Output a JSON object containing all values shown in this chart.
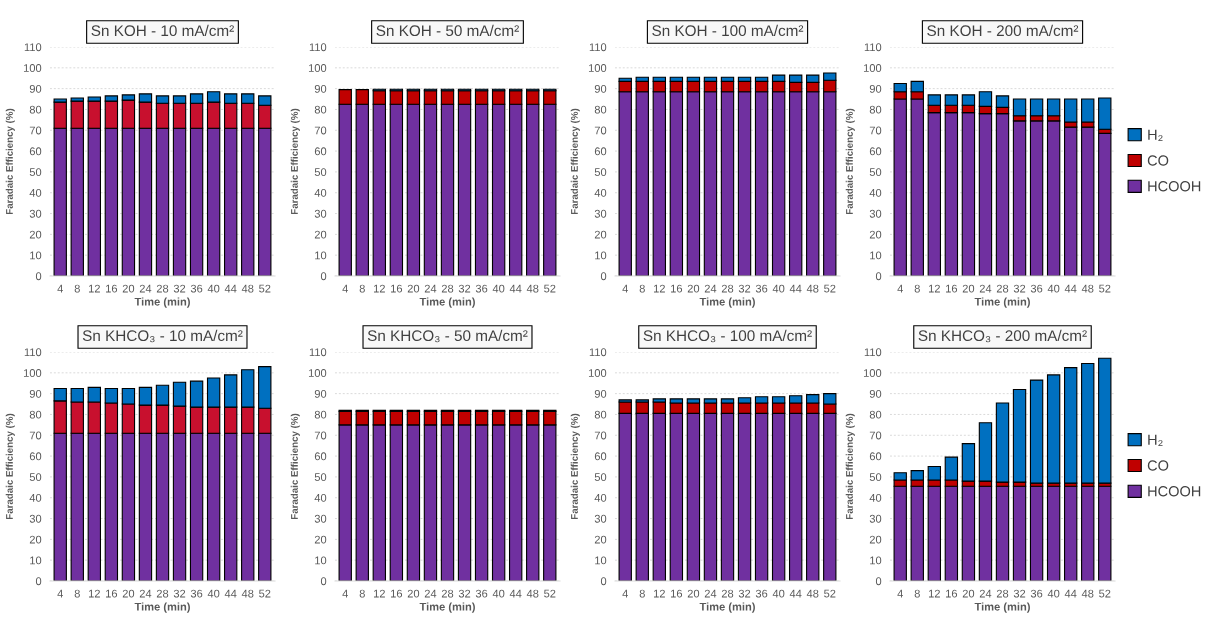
{
  "chart_data": [
    {
      "type": "bar",
      "stacked": true,
      "title": "Sn KOH - 10 mA/cm²",
      "xlabel": "Time (min)",
      "ylabel": "Faradaic Efficiency (%)",
      "categories": [
        "4",
        "8",
        "12",
        "16",
        "20",
        "24",
        "28",
        "32",
        "36",
        "40",
        "44",
        "48",
        "52"
      ],
      "ylim": [
        0,
        110
      ],
      "yticks": [
        0,
        10,
        20,
        30,
        40,
        50,
        60,
        70,
        80,
        90,
        100,
        110
      ],
      "grid": "y",
      "legend": false,
      "series": [
        {
          "color": "#7030a0",
          "values": [
            71,
            71,
            71,
            71,
            71,
            71,
            71,
            71,
            71,
            71,
            71,
            71,
            71
          ]
        },
        {
          "color": "#c8102e",
          "values": [
            12.5,
            13,
            13,
            13,
            13.5,
            12.5,
            12,
            12,
            12,
            12.5,
            12,
            12,
            11
          ]
        },
        {
          "color": "#0070c0",
          "values": [
            1.5,
            1.5,
            2,
            2.5,
            2.5,
            4,
            3.5,
            3.5,
            4.5,
            5,
            4.5,
            4.5,
            4.5
          ]
        }
      ]
    },
    {
      "type": "bar",
      "stacked": true,
      "title": "Sn KOH - 50 mA/cm²",
      "xlabel": "Time (min)",
      "ylabel": "Faradaic Efficiency (%)",
      "categories": [
        "4",
        "8",
        "12",
        "16",
        "20",
        "24",
        "28",
        "32",
        "36",
        "40",
        "44",
        "48",
        "52"
      ],
      "ylim": [
        0,
        110
      ],
      "yticks": [
        0,
        10,
        20,
        30,
        40,
        50,
        60,
        70,
        80,
        90,
        100,
        110
      ],
      "grid": "y",
      "legend": false,
      "series": [
        {
          "color": "#7030a0",
          "values": [
            82.5,
            82.5,
            82.5,
            82.5,
            82.5,
            82.5,
            82.5,
            82.5,
            82.5,
            82.5,
            82.5,
            82.5,
            82.5
          ]
        },
        {
          "color": "#c00000",
          "values": [
            7,
            7,
            6.5,
            6.5,
            6.5,
            6.5,
            6.5,
            6.5,
            6.5,
            6.5,
            6.5,
            6.5,
            6.5
          ]
        },
        {
          "color": "#0070c0",
          "values": [
            null,
            null,
            0.7,
            0.7,
            0.7,
            0.7,
            0.7,
            0.7,
            0.7,
            0.7,
            0.7,
            0.7,
            0.7
          ]
        }
      ]
    },
    {
      "type": "bar",
      "stacked": true,
      "title": "Sn KOH - 100 mA/cm²",
      "xlabel": "Time (min)",
      "ylabel": "Faradaic Efficiency (%)",
      "categories": [
        "4",
        "8",
        "12",
        "16",
        "20",
        "24",
        "28",
        "32",
        "36",
        "40",
        "44",
        "48",
        "52"
      ],
      "ylim": [
        0,
        110
      ],
      "yticks": [
        0,
        10,
        20,
        30,
        40,
        50,
        60,
        70,
        80,
        90,
        100,
        110
      ],
      "grid": "y",
      "legend": false,
      "series": [
        {
          "color": "#7030a0",
          "values": [
            88.5,
            88.5,
            88.5,
            88.5,
            88.5,
            88.5,
            88.5,
            88.5,
            88.5,
            88.5,
            88.5,
            88.5,
            88.5
          ]
        },
        {
          "color": "#c00000",
          "values": [
            5,
            5,
            5,
            5,
            5,
            5,
            5,
            5,
            5,
            5,
            4.5,
            4.5,
            5.5
          ]
        },
        {
          "color": "#0070c0",
          "values": [
            1.5,
            2,
            2,
            2,
            2,
            2,
            2,
            2,
            2,
            3,
            3.5,
            3.5,
            3.5
          ]
        }
      ]
    },
    {
      "type": "bar",
      "stacked": true,
      "title": "Sn KOH - 200 mA/cm²",
      "xlabel": "Time (min)",
      "ylabel": "Faradaic Efficiency (%)",
      "categories": [
        "4",
        "8",
        "12",
        "16",
        "20",
        "24",
        "28",
        "32",
        "36",
        "40",
        "44",
        "48",
        "52"
      ],
      "ylim": [
        0,
        110
      ],
      "yticks": [
        0,
        10,
        20,
        30,
        40,
        50,
        60,
        70,
        80,
        90,
        100,
        110
      ],
      "grid": "y",
      "legend": "right",
      "series": [
        {
          "name": "HCOOH",
          "color": "#7030a0",
          "values": [
            85,
            85,
            78.5,
            78.5,
            78.5,
            78,
            78,
            74.5,
            74.5,
            74.5,
            71.5,
            71.5,
            68.5
          ]
        },
        {
          "name": "CO",
          "color": "#c00000",
          "values": [
            3.5,
            3.5,
            3.5,
            3.5,
            3.5,
            3.5,
            3,
            2.5,
            2.5,
            2.5,
            2.5,
            2.5,
            2
          ]
        },
        {
          "name": "H₂",
          "color": "#0070c0",
          "values": [
            4,
            5,
            5,
            5,
            5,
            7,
            5.5,
            8,
            8,
            8,
            11,
            11,
            15
          ]
        }
      ]
    },
    {
      "type": "bar",
      "stacked": true,
      "title": "Sn KHCO₃ - 10 mA/cm²",
      "xlabel": "Time (min)",
      "ylabel": "Faradaic Efficiency (%)",
      "categories": [
        "4",
        "8",
        "12",
        "16",
        "20",
        "24",
        "28",
        "32",
        "36",
        "40",
        "44",
        "48",
        "52"
      ],
      "ylim": [
        0,
        110
      ],
      "yticks": [
        0,
        10,
        20,
        30,
        40,
        50,
        60,
        70,
        80,
        90,
        100,
        110
      ],
      "grid": "y",
      "legend": false,
      "series": [
        {
          "color": "#7030a0",
          "values": [
            71,
            71,
            71,
            71,
            71,
            71,
            71,
            71,
            71,
            71,
            71,
            71,
            71
          ]
        },
        {
          "color": "#c8102e",
          "values": [
            15.5,
            15,
            15,
            14.5,
            14,
            13.5,
            13.5,
            13,
            12.5,
            12.5,
            12.5,
            12.5,
            12
          ]
        },
        {
          "color": "#0070c0",
          "values": [
            6,
            6.5,
            7,
            7,
            7.5,
            8.5,
            9.5,
            11.5,
            12.5,
            14,
            15.5,
            18,
            20
          ]
        }
      ]
    },
    {
      "type": "bar",
      "stacked": true,
      "title": "Sn KHCO₃ - 50 mA/cm²",
      "xlabel": "Time (min)",
      "ylabel": "Faradaic Efficiency (%)",
      "categories": [
        "4",
        "8",
        "12",
        "16",
        "20",
        "24",
        "28",
        "32",
        "36",
        "40",
        "44",
        "48",
        "52"
      ],
      "ylim": [
        0,
        110
      ],
      "yticks": [
        0,
        10,
        20,
        30,
        40,
        50,
        60,
        70,
        80,
        90,
        100,
        110
      ],
      "grid": "y",
      "legend": false,
      "series": [
        {
          "color": "#7030a0",
          "values": [
            75,
            75,
            75,
            75,
            75,
            75,
            75,
            75,
            75,
            75,
            75,
            75,
            75
          ]
        },
        {
          "color": "#c00000",
          "values": [
            6.5,
            6.5,
            6.5,
            6.5,
            6.5,
            6.5,
            6.5,
            6.5,
            6.5,
            6.5,
            6.5,
            6.5,
            6.5
          ]
        },
        {
          "color": "#0070c0",
          "values": [
            0.5,
            0.5,
            0.5,
            0.5,
            0.5,
            0.5,
            0.5,
            0.5,
            0.5,
            0.5,
            0.5,
            0.5,
            0.5
          ]
        }
      ]
    },
    {
      "type": "bar",
      "stacked": true,
      "title": "Sn KHCO₃ - 100 mA/cm²",
      "xlabel": "Time (min)",
      "ylabel": "Faradaic Efficiency (%)",
      "categories": [
        "4",
        "8",
        "12",
        "16",
        "20",
        "24",
        "28",
        "32",
        "36",
        "40",
        "44",
        "48",
        "52"
      ],
      "ylim": [
        0,
        110
      ],
      "yticks": [
        0,
        10,
        20,
        30,
        40,
        50,
        60,
        70,
        80,
        90,
        100,
        110
      ],
      "grid": "y",
      "legend": false,
      "series": [
        {
          "color": "#7030a0",
          "values": [
            80.5,
            80.5,
            80.5,
            80.5,
            80.5,
            80.5,
            80.5,
            80.5,
            80.5,
            80.5,
            80.5,
            80.5,
            80.5
          ]
        },
        {
          "color": "#c00000",
          "values": [
            5.5,
            5.5,
            5.5,
            5,
            5,
            5,
            5,
            5,
            5,
            5,
            5,
            5,
            4.5
          ]
        },
        {
          "color": "#0070c0",
          "values": [
            1,
            1,
            1.5,
            2,
            2,
            2,
            2,
            2.5,
            3,
            3,
            3.5,
            4,
            5
          ]
        }
      ]
    },
    {
      "type": "bar",
      "stacked": true,
      "title": "Sn KHCO₃ - 200 mA/cm²",
      "xlabel": "Time (min)",
      "ylabel": "Faradaic Efficiency (%)",
      "categories": [
        "4",
        "8",
        "12",
        "16",
        "20",
        "24",
        "28",
        "32",
        "36",
        "40",
        "44",
        "48",
        "52"
      ],
      "ylim": [
        0,
        110
      ],
      "yticks": [
        0,
        10,
        20,
        30,
        40,
        50,
        60,
        70,
        80,
        90,
        100,
        110
      ],
      "grid": "y",
      "legend": "right",
      "series": [
        {
          "name": "HCOOH",
          "color": "#7030a0",
          "values": [
            45.5,
            45.5,
            45.5,
            45.5,
            45.5,
            45.5,
            45.5,
            45.5,
            45.5,
            45.5,
            45.5,
            45.5,
            45.5
          ]
        },
        {
          "name": "CO",
          "color": "#c00000",
          "values": [
            3,
            3,
            3,
            3,
            2.5,
            2.5,
            2,
            2,
            1.5,
            1.5,
            1.5,
            1.5,
            1.5
          ]
        },
        {
          "name": "H₂",
          "color": "#0070c0",
          "values": [
            3.5,
            4.5,
            6.5,
            11,
            18,
            28,
            38,
            44.5,
            49.5,
            52,
            55.5,
            57.5,
            60
          ]
        }
      ]
    }
  ]
}
